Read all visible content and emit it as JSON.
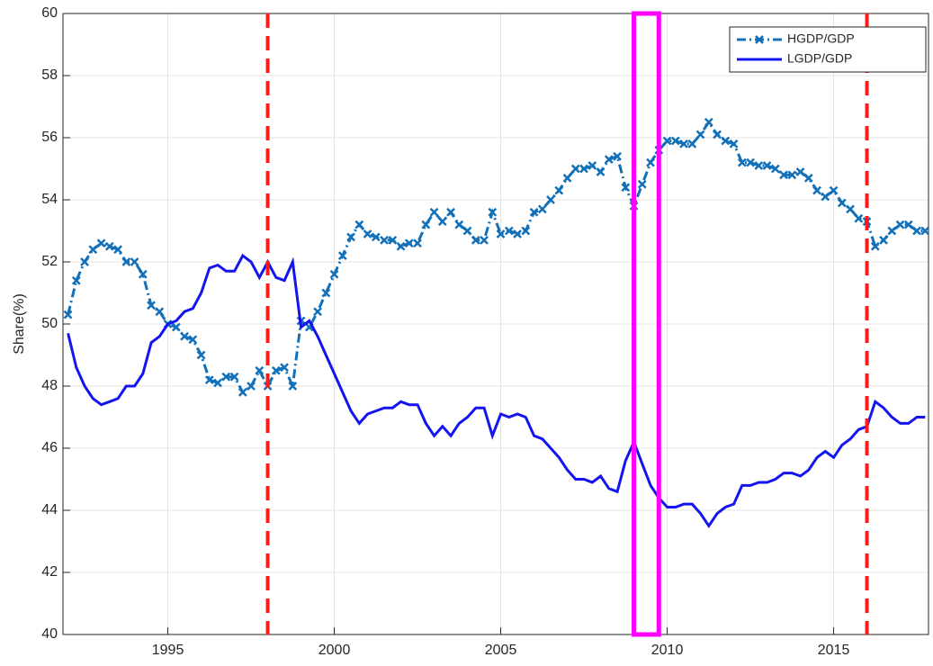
{
  "chart_data": {
    "type": "line",
    "y_label": "Share(%)",
    "xlim": [
      1991.85,
      2017.85
    ],
    "xticks": [
      1995,
      2000,
      2005,
      2010,
      2015
    ],
    "ylim": [
      40,
      60
    ],
    "yticks": [
      40,
      42,
      44,
      46,
      48,
      50,
      52,
      54,
      56,
      58,
      60
    ],
    "grid": true,
    "legend": "top-right",
    "vlines": [
      1998,
      2016
    ],
    "vline_color": "#ff1a1a",
    "highlight": [
      2009,
      2009.75
    ],
    "highlight_color": "#ff00ff",
    "x": [
      1992,
      1992.25,
      1992.5,
      1992.75,
      1993,
      1993.25,
      1993.5,
      1993.75,
      1994,
      1994.25,
      1994.5,
      1994.75,
      1995,
      1995.25,
      1995.5,
      1995.75,
      1996,
      1996.25,
      1996.5,
      1996.75,
      1997,
      1997.25,
      1997.5,
      1997.75,
      1998,
      1998.25,
      1998.5,
      1998.75,
      1999,
      1999.25,
      1999.5,
      1999.75,
      2000,
      2000.25,
      2000.5,
      2000.75,
      2001,
      2001.25,
      2001.5,
      2001.75,
      2002,
      2002.25,
      2002.5,
      2002.75,
      2003,
      2003.25,
      2003.5,
      2003.75,
      2004,
      2004.25,
      2004.5,
      2004.75,
      2005,
      2005.25,
      2005.5,
      2005.75,
      2006,
      2006.25,
      2006.5,
      2006.75,
      2007,
      2007.25,
      2007.5,
      2007.75,
      2008,
      2008.25,
      2008.5,
      2008.75,
      2009,
      2009.25,
      2009.5,
      2009.75,
      2010,
      2010.25,
      2010.5,
      2010.75,
      2011,
      2011.25,
      2011.5,
      2011.75,
      2012,
      2012.25,
      2012.5,
      2012.75,
      2013,
      2013.25,
      2013.5,
      2013.75,
      2014,
      2014.25,
      2014.5,
      2014.75,
      2015,
      2015.25,
      2015.5,
      2015.75,
      2016,
      2016.25,
      2016.5,
      2016.75,
      2017,
      2017.25,
      2017.5,
      2017.75
    ],
    "series": [
      {
        "name": "HGDP/GDP",
        "color": "#1170b8",
        "dash": "dashdot",
        "marker": "x",
        "values": [
          50.3,
          51.4,
          52.0,
          52.4,
          52.6,
          52.5,
          52.4,
          52.0,
          52.0,
          51.6,
          50.6,
          50.4,
          50.0,
          49.9,
          49.6,
          49.5,
          49.0,
          48.2,
          48.1,
          48.3,
          48.3,
          47.8,
          48.0,
          48.5,
          48.0,
          48.5,
          48.6,
          48.0,
          50.1,
          49.9,
          50.4,
          51.0,
          51.6,
          52.2,
          52.8,
          53.2,
          52.9,
          52.8,
          52.7,
          52.7,
          52.5,
          52.6,
          52.6,
          53.2,
          53.6,
          53.3,
          53.6,
          53.2,
          53.0,
          52.7,
          52.7,
          53.6,
          52.9,
          53.0,
          52.9,
          53.0,
          53.6,
          53.7,
          54.0,
          54.3,
          54.7,
          55.0,
          55.0,
          55.1,
          54.9,
          55.3,
          55.4,
          54.4,
          53.8,
          54.5,
          55.2,
          55.6,
          55.9,
          55.9,
          55.8,
          55.8,
          56.1,
          56.5,
          56.1,
          55.9,
          55.8,
          55.2,
          55.2,
          55.1,
          55.1,
          55.0,
          54.8,
          54.8,
          54.9,
          54.7,
          54.3,
          54.1,
          54.3,
          53.9,
          53.7,
          53.4,
          53.3,
          52.5,
          52.7,
          53.0,
          53.2,
          53.2,
          53.0,
          53.0
        ]
      },
      {
        "name": "LGDP/GDP",
        "color": "#1414f0",
        "dash": "solid",
        "values": [
          49.7,
          48.6,
          48.0,
          47.6,
          47.4,
          47.5,
          47.6,
          48.0,
          48.0,
          48.4,
          49.4,
          49.6,
          50.0,
          50.1,
          50.4,
          50.5,
          51.0,
          51.8,
          51.9,
          51.7,
          51.7,
          52.2,
          52.0,
          51.5,
          52.0,
          51.5,
          51.4,
          52.0,
          49.9,
          50.1,
          49.6,
          49.0,
          48.4,
          47.8,
          47.2,
          46.8,
          47.1,
          47.2,
          47.3,
          47.3,
          47.5,
          47.4,
          47.4,
          46.8,
          46.4,
          46.7,
          46.4,
          46.8,
          47.0,
          47.3,
          47.3,
          46.4,
          47.1,
          47.0,
          47.1,
          47.0,
          46.4,
          46.3,
          46.0,
          45.7,
          45.3,
          45.0,
          45.0,
          44.9,
          45.1,
          44.7,
          44.6,
          45.6,
          46.2,
          45.5,
          44.8,
          44.4,
          44.1,
          44.1,
          44.2,
          44.2,
          43.9,
          43.5,
          43.9,
          44.1,
          44.2,
          44.8,
          44.8,
          44.9,
          44.9,
          45.0,
          45.2,
          45.2,
          45.1,
          45.3,
          45.7,
          45.9,
          45.7,
          46.1,
          46.3,
          46.6,
          46.7,
          47.5,
          47.3,
          47.0,
          46.8,
          46.8,
          47.0,
          47.0
        ]
      }
    ]
  }
}
